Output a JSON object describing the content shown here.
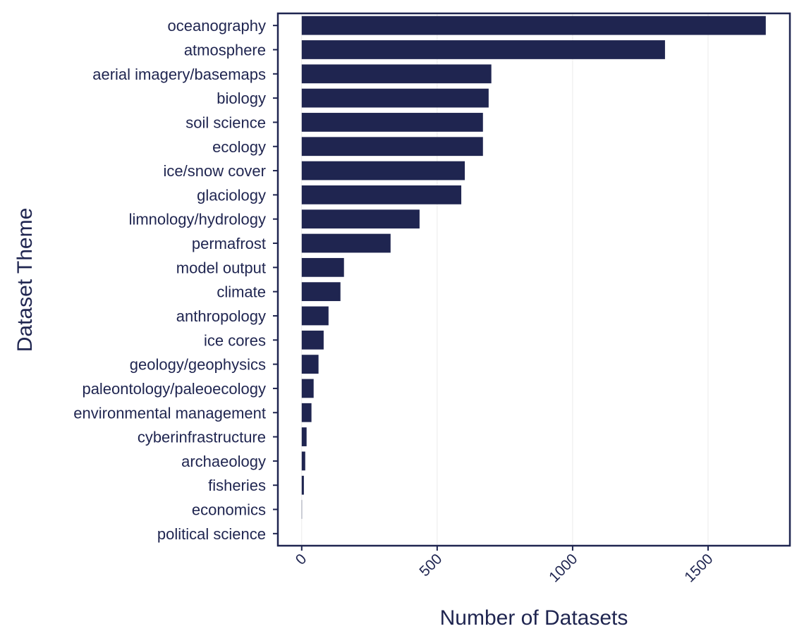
{
  "chart_data": {
    "type": "bar",
    "orientation": "horizontal",
    "x_label": "Number of Datasets",
    "y_label": "Dataset Theme",
    "categories": [
      "oceanography",
      "atmosphere",
      "aerial imagery/basemaps",
      "biology",
      "soil science",
      "ecology",
      "ice/snow cover",
      "glaciology",
      "limnology/hydrology",
      "permafrost",
      "model output",
      "climate",
      "anthropology",
      "ice cores",
      "geology/geophysics",
      "paleontology/paleoecology",
      "environmental management",
      "cyberinfrastructure",
      "archaeology",
      "fisheries",
      "economics",
      "political science"
    ],
    "values": [
      1713,
      1341,
      700,
      690,
      669,
      669,
      602,
      589,
      435,
      328,
      156,
      143,
      99,
      81,
      62,
      44,
      36,
      18,
      13,
      8,
      1,
      0
    ],
    "color": "#1f2550",
    "xlim": [
      -88,
      1802
    ],
    "xticks": [
      0,
      500,
      1000,
      1500
    ],
    "grid": true
  }
}
